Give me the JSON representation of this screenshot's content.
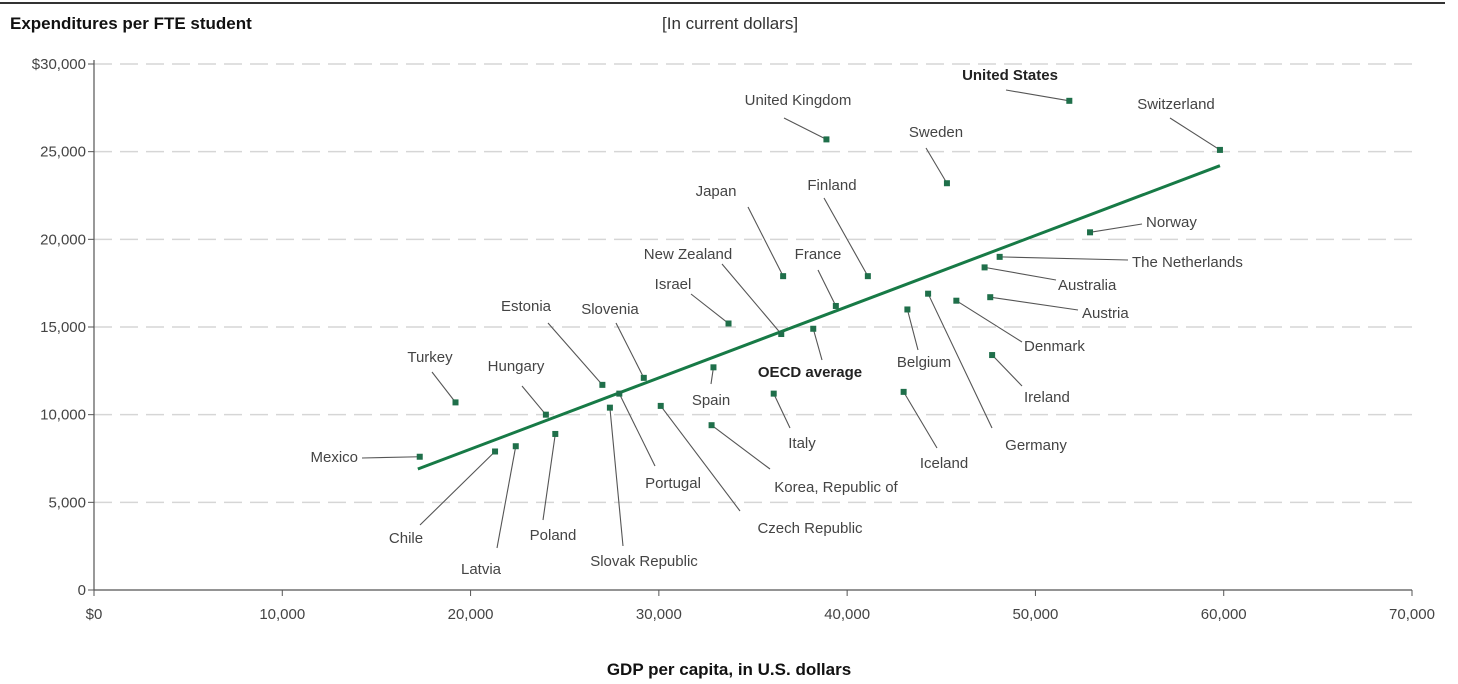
{
  "chart_data": {
    "type": "scatter",
    "title": "Expenditures per FTE student",
    "subtitle": "[In current dollars]",
    "xlabel": "GDP per capita, in U.S. dollars",
    "ylabel": "",
    "xlim": [
      0,
      70000
    ],
    "ylim": [
      0,
      30000
    ],
    "x_ticks": [
      {
        "value": 0,
        "label": "$0"
      },
      {
        "value": 10000,
        "label": "10,000"
      },
      {
        "value": 20000,
        "label": "20,000"
      },
      {
        "value": 30000,
        "label": "30,000"
      },
      {
        "value": 40000,
        "label": "40,000"
      },
      {
        "value": 50000,
        "label": "50,000"
      },
      {
        "value": 60000,
        "label": "60,000"
      },
      {
        "value": 70000,
        "label": "70,000"
      }
    ],
    "y_ticks": [
      {
        "value": 0,
        "label": "0"
      },
      {
        "value": 5000,
        "label": "5,000"
      },
      {
        "value": 10000,
        "label": "10,000"
      },
      {
        "value": 15000,
        "label": "15,000"
      },
      {
        "value": 20000,
        "label": "20,000"
      },
      {
        "value": 25000,
        "label": "25,000"
      },
      {
        "value": 30000,
        "label": "$30,000"
      }
    ],
    "grid": "horizontal dashed",
    "point_color": "#1f6f4a",
    "trendline": {
      "color": "#177a46",
      "x": [
        17200,
        59800
      ],
      "y": [
        6900,
        24200
      ]
    },
    "points": [
      {
        "name": "Mexico",
        "x": 17300,
        "y": 7600
      },
      {
        "name": "Turkey",
        "x": 19200,
        "y": 10700
      },
      {
        "name": "Chile",
        "x": 21300,
        "y": 7900
      },
      {
        "name": "Latvia",
        "x": 22400,
        "y": 8200
      },
      {
        "name": "Hungary",
        "x": 24000,
        "y": 10000
      },
      {
        "name": "Poland",
        "x": 24500,
        "y": 8900
      },
      {
        "name": "Estonia",
        "x": 27000,
        "y": 11700
      },
      {
        "name": "Slovak Republic",
        "x": 27400,
        "y": 10400
      },
      {
        "name": "Portugal",
        "x": 27900,
        "y": 11200
      },
      {
        "name": "Slovenia",
        "x": 29200,
        "y": 12100
      },
      {
        "name": "Czech Republic",
        "x": 30100,
        "y": 10500
      },
      {
        "name": "Korea, Republic of",
        "x": 32800,
        "y": 9400
      },
      {
        "name": "Spain",
        "x": 32900,
        "y": 12700
      },
      {
        "name": "Israel",
        "x": 33700,
        "y": 15200
      },
      {
        "name": "Italy",
        "x": 36100,
        "y": 11200
      },
      {
        "name": "New Zealand",
        "x": 36500,
        "y": 14600
      },
      {
        "name": "Japan",
        "x": 36600,
        "y": 17900
      },
      {
        "name": "OECD average",
        "x": 38200,
        "y": 14900
      },
      {
        "name": "United Kingdom",
        "x": 38900,
        "y": 25700
      },
      {
        "name": "France",
        "x": 39400,
        "y": 16200
      },
      {
        "name": "Finland",
        "x": 41100,
        "y": 17900
      },
      {
        "name": "Iceland",
        "x": 43000,
        "y": 11300
      },
      {
        "name": "Belgium",
        "x": 43200,
        "y": 16000
      },
      {
        "name": "Germany",
        "x": 44300,
        "y": 16900
      },
      {
        "name": "Sweden",
        "x": 45300,
        "y": 23200
      },
      {
        "name": "Denmark",
        "x": 45800,
        "y": 16500
      },
      {
        "name": "Australia",
        "x": 47300,
        "y": 18400
      },
      {
        "name": "Austria",
        "x": 47600,
        "y": 16700
      },
      {
        "name": "Ireland",
        "x": 47700,
        "y": 13400
      },
      {
        "name": "The Netherlands",
        "x": 48100,
        "y": 19000
      },
      {
        "name": "United States",
        "x": 51800,
        "y": 27900
      },
      {
        "name": "Norway",
        "x": 52900,
        "y": 20400
      },
      {
        "name": "Switzerland",
        "x": 59800,
        "y": 25100
      }
    ],
    "bold_labels": [
      "United States",
      "OECD average"
    ]
  }
}
